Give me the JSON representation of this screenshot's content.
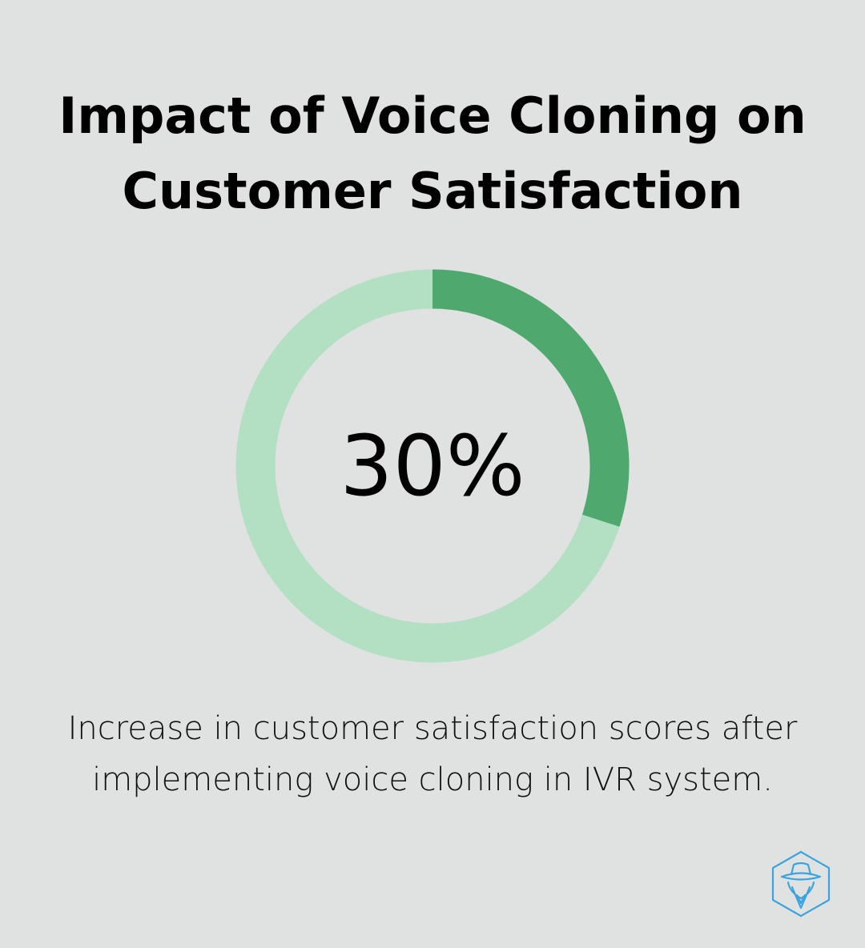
{
  "title": {
    "line1": "Impact of Voice Cloning on",
    "line2": "Customer Satisfaction"
  },
  "chart_data": {
    "type": "pie",
    "variant": "donut",
    "values": [
      30,
      70
    ],
    "center_label": "30%",
    "colors": {
      "highlight": "#4fa96f",
      "remainder": "#b3dfc2"
    }
  },
  "caption": {
    "line1": "Increase in customer satisfaction scores after",
    "line2": "implementing voice cloning in IVR system."
  },
  "logo": {
    "icon": "spy-hat-hexagon-icon",
    "color": "#3ba4e0"
  },
  "background": "#e0e2e1"
}
